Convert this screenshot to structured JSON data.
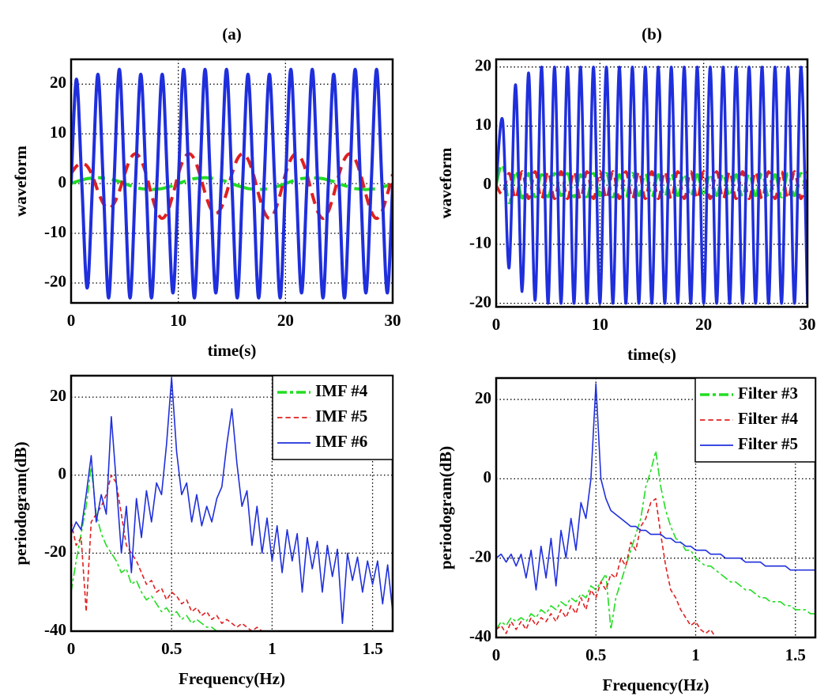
{
  "chart_data": [
    {
      "type": "line",
      "title": "(a)",
      "xlabel": "time(s)",
      "ylabel": "waveform",
      "xlim": [
        0,
        30
      ],
      "ylim": [
        -24,
        25
      ],
      "xticks": [
        0,
        10,
        20,
        30
      ],
      "yticks": [
        -20,
        -10,
        0,
        10,
        20
      ],
      "grid": true,
      "x": [
        0,
        0.5,
        1,
        1.5,
        2,
        2.5,
        3,
        3.5,
        4,
        4.5,
        5,
        5.5,
        6,
        6.5,
        7,
        7.5,
        8,
        8.5,
        9,
        9.5,
        10,
        10.5,
        11,
        11.5,
        12,
        12.5,
        13,
        13.5,
        14,
        14.5,
        15,
        15.5,
        16,
        16.5,
        17,
        17.5,
        18,
        18.5,
        19,
        19.5,
        20,
        20.5,
        21,
        21.5,
        22,
        22.5,
        23,
        23.5,
        24,
        24.5,
        25,
        25.5,
        26,
        26.5,
        27,
        27.5,
        28,
        28.5,
        29,
        29.5,
        30
      ],
      "series": [
        {
          "color": "#22dd22",
          "style": "dashdot",
          "values": [
            0,
            0.4,
            0.7,
            1,
            1.1,
            1.2,
            1.1,
            1,
            0.7,
            0.4,
            0,
            -0.4,
            -0.7,
            -1,
            -1.1,
            -1.2,
            -1.1,
            -1,
            -0.7,
            -0.4,
            0,
            0.4,
            0.7,
            1,
            1.1,
            1.2,
            1.1,
            1,
            0.7,
            0.4,
            0,
            -0.4,
            -0.7,
            -1,
            -1.1,
            -1.2,
            -1.1,
            -1,
            -0.7,
            -0.4,
            0,
            0.4,
            0.7,
            1,
            1.1,
            1.2,
            1.1,
            1,
            0.7,
            0.4,
            0,
            -0.4,
            -0.7,
            -1,
            -1.1,
            -1.2,
            -1.1,
            -1,
            -0.7,
            -0.4,
            0
          ]
        },
        {
          "color": "#e02020",
          "style": "dashed",
          "values": [
            2,
            3.5,
            4,
            3.5,
            1.5,
            -1.5,
            -4,
            -5,
            -4,
            -1.5,
            1.9,
            4.9,
            6,
            4.9,
            1.9,
            -2.2,
            -5.6,
            -7,
            -5.6,
            -2.2,
            1.9,
            4.9,
            6,
            4.9,
            1.9,
            -1.9,
            -4.9,
            -6,
            -4.9,
            -1.9,
            1.9,
            4.9,
            6,
            4.9,
            1.9,
            -2.2,
            -5.6,
            -7,
            -5.6,
            -2.2,
            1.9,
            4.9,
            6,
            4.9,
            1.9,
            -2.2,
            -5.6,
            -7,
            -5.6,
            -2.2,
            1.9,
            4.9,
            6,
            4.9,
            1.9,
            -2.2,
            -5.6,
            -7,
            -5.6,
            -2.2,
            1.9
          ]
        },
        {
          "color": "#1f2fdc",
          "style": "solid",
          "values": [
            0,
            21,
            0,
            -21,
            0,
            22,
            0,
            -23,
            0,
            23,
            0,
            -23,
            0,
            22,
            0,
            -23,
            0,
            22,
            0,
            -22,
            0,
            23,
            0,
            -23,
            0,
            23,
            0,
            -22,
            0,
            23,
            0,
            -23,
            0,
            22,
            0,
            -23,
            0,
            22,
            0,
            -23,
            0,
            23,
            0,
            -22,
            0,
            23,
            0,
            -23,
            0,
            22,
            0,
            -23,
            0,
            23,
            0,
            -22,
            0,
            23,
            0,
            -22,
            0
          ]
        }
      ]
    },
    {
      "type": "line",
      "title": "(b)",
      "xlabel": "time(s)",
      "ylabel": "waveform",
      "xlim": [
        0,
        30
      ],
      "ylim": [
        -20.6,
        21.3
      ],
      "xticks": [
        0,
        10,
        20,
        30
      ],
      "yticks": [
        -20,
        -10,
        0,
        10,
        20
      ],
      "grid": true,
      "x": [
        0,
        0.625,
        1.25,
        1.875,
        2.5,
        3.125,
        3.75,
        4.375,
        5,
        5.625,
        6.25,
        6.875,
        7.5,
        8.125,
        8.75,
        9.375,
        10,
        10.625,
        11.25,
        11.875,
        12.5,
        13.125,
        13.75,
        14.375,
        15,
        15.625,
        16.25,
        16.875,
        17.5,
        18.125,
        18.75,
        19.375,
        20,
        20.625,
        21.25,
        21.875,
        22.5,
        23.125,
        23.75,
        24.375,
        25,
        25.625,
        26.25,
        26.875,
        27.5,
        28.125,
        28.75,
        29.375,
        30
      ],
      "series": [
        {
          "color": "#22dd22",
          "style": "dashdot",
          "values": [
            0,
            3.5,
            -3,
            2.5,
            -2.2,
            2,
            -2,
            1.8,
            -2,
            2,
            -1.8,
            2,
            -2,
            1.8,
            -2,
            2,
            -1.8,
            2,
            -2,
            1.8,
            -2,
            2,
            -1.8,
            2,
            -2,
            1.8,
            -2,
            2,
            -1.8,
            2,
            -2,
            1.8,
            -2,
            2,
            -1.8,
            2,
            -2,
            1.8,
            -2,
            2,
            -1.8,
            2,
            -2,
            1.8,
            -2,
            2,
            -1.8,
            2,
            -2
          ]
        },
        {
          "color": "#e02020",
          "style": "dashed",
          "values": [
            0,
            -1.5,
            2,
            -2.3,
            2.3,
            -2.3,
            2.3,
            -2.3,
            2.3,
            -2.3,
            2.3,
            -2.3,
            2.3,
            -2.3,
            2.3,
            -2.3,
            2.3,
            -2.3,
            2.3,
            -2.3,
            2.3,
            -2.3,
            2.3,
            -2.3,
            2.3,
            -2.3,
            2.3,
            -2.3,
            2.3,
            -2.3,
            2.3,
            -2.3,
            2.3,
            -2.3,
            2.3,
            -2.3,
            2.3,
            -2.3,
            2.3,
            -2.3,
            2.3,
            -2.3,
            2.3,
            -2.3,
            2.3,
            -2.3,
            2.3,
            -2.3,
            2.3
          ]
        },
        {
          "color": "#1f2fdc",
          "style": "solid",
          "values": [
            0,
            11,
            -14,
            17,
            -18,
            19,
            -19.5,
            20,
            -20,
            20,
            -20,
            20,
            -20,
            20,
            -20,
            20,
            -20,
            20,
            -20,
            20,
            -20,
            20,
            -20,
            20,
            -20,
            20,
            -20,
            20,
            -20,
            20,
            -20,
            20,
            -20,
            20,
            -20,
            20,
            -20,
            20,
            -20,
            20,
            -20,
            20,
            -20,
            20,
            -20,
            20,
            -20,
            20,
            -20
          ]
        }
      ]
    },
    {
      "type": "line",
      "xlabel": "Frequency(Hz)",
      "ylabel": "periodogram(dB)",
      "xlim": [
        0,
        1.6
      ],
      "ylim": [
        -40,
        25.5
      ],
      "xticks": [
        0,
        0.5,
        1,
        1.5
      ],
      "yticks": [
        -40,
        -20,
        0,
        20
      ],
      "grid": true,
      "legend": "upper right",
      "x": [
        0,
        0.025,
        0.05,
        0.075,
        0.1,
        0.125,
        0.15,
        0.175,
        0.2,
        0.225,
        0.25,
        0.275,
        0.3,
        0.325,
        0.35,
        0.375,
        0.4,
        0.425,
        0.45,
        0.475,
        0.5,
        0.525,
        0.55,
        0.575,
        0.6,
        0.625,
        0.65,
        0.675,
        0.7,
        0.725,
        0.75,
        0.775,
        0.8,
        0.825,
        0.85,
        0.875,
        0.9,
        0.925,
        0.95,
        0.975,
        1,
        1.025,
        1.05,
        1.075,
        1.1,
        1.125,
        1.15,
        1.175,
        1.2,
        1.225,
        1.25,
        1.275,
        1.3,
        1.325,
        1.35,
        1.375,
        1.4,
        1.425,
        1.45,
        1.475,
        1.5,
        1.525,
        1.55,
        1.575,
        1.6
      ],
      "series": [
        {
          "name": "IMF #4",
          "color": "#22dd22",
          "style": "dashdot",
          "values": [
            -30,
            -22,
            -15,
            -8,
            2,
            -10,
            -15,
            -18,
            -20,
            -22,
            -25,
            -24,
            -28,
            -27,
            -30,
            -32,
            -31,
            -33,
            -35,
            -34,
            -36,
            -35,
            -37,
            -36,
            -38,
            -37,
            -38,
            -39,
            -39,
            -40,
            -40,
            -40,
            -40,
            -40,
            -40,
            -40,
            -40,
            -40,
            -40,
            -40,
            -40,
            -40,
            -40,
            -40,
            -40,
            -40,
            -40,
            -40,
            -40,
            -40,
            -40,
            -40,
            -40,
            -40,
            -40,
            -40,
            -40,
            -40,
            -40,
            -40,
            -40,
            -40,
            -40,
            -40,
            -40
          ]
        },
        {
          "name": "IMF #5",
          "color": "#e02020",
          "style": "dashed",
          "values": [
            -12,
            -18,
            -16,
            -35,
            -12,
            -10,
            -8,
            -5,
            0,
            -2,
            -10,
            -18,
            -20,
            -22,
            -25,
            -28,
            -27,
            -30,
            -29,
            -32,
            -30,
            -31,
            -33,
            -32,
            -35,
            -34,
            -36,
            -35,
            -37,
            -36,
            -38,
            -37,
            -38,
            -39,
            -38,
            -39,
            -40,
            -39,
            -40,
            -40,
            -40,
            -40,
            -40,
            -40,
            -40,
            -40,
            -40,
            -40,
            -40,
            -40,
            -40,
            -40,
            -40,
            -40,
            -40,
            -40,
            -40,
            -40,
            -40,
            -40,
            -40,
            -40,
            -40,
            -40,
            -40
          ]
        },
        {
          "name": "IMF #6",
          "color": "#1f2fdc",
          "style": "solid",
          "values": [
            -15,
            -12,
            -14,
            -5,
            5,
            -12,
            -5,
            -10,
            15,
            -2,
            -20,
            -8,
            -25,
            -6,
            -16,
            -4,
            -12,
            -2,
            -5,
            8,
            25,
            6,
            -5,
            -2,
            -12,
            -5,
            -13,
            -8,
            -12,
            -6,
            -3,
            8,
            17,
            3,
            -8,
            -4,
            -18,
            -8,
            -20,
            -11,
            -22,
            -13,
            -25,
            -14,
            -22,
            -15,
            -30,
            -16,
            -24,
            -17,
            -30,
            -18,
            -26,
            -19,
            -38,
            -20,
            -27,
            -21,
            -30,
            -22,
            -28,
            -22,
            -33,
            -23,
            -35
          ]
        }
      ]
    },
    {
      "type": "line",
      "xlabel": "Frequency(Hz)",
      "ylabel": "periodogram(dB)",
      "xlim": [
        0,
        1.6
      ],
      "ylim": [
        -40,
        25.4
      ],
      "xticks": [
        0,
        0.5,
        1,
        1.5
      ],
      "yticks": [
        -40,
        -20,
        0,
        20
      ],
      "grid": true,
      "legend": "upper right",
      "x": [
        0,
        0.025,
        0.05,
        0.075,
        0.1,
        0.125,
        0.15,
        0.175,
        0.2,
        0.225,
        0.25,
        0.275,
        0.3,
        0.325,
        0.35,
        0.375,
        0.4,
        0.425,
        0.45,
        0.475,
        0.5,
        0.525,
        0.55,
        0.575,
        0.6,
        0.625,
        0.65,
        0.675,
        0.7,
        0.725,
        0.75,
        0.775,
        0.8,
        0.825,
        0.85,
        0.875,
        0.9,
        0.925,
        0.95,
        0.975,
        1,
        1.025,
        1.05,
        1.075,
        1.1,
        1.125,
        1.15,
        1.175,
        1.2,
        1.225,
        1.25,
        1.275,
        1.3,
        1.325,
        1.35,
        1.375,
        1.4,
        1.425,
        1.45,
        1.475,
        1.5,
        1.525,
        1.55,
        1.575,
        1.6
      ],
      "series": [
        {
          "name": "Filter #3",
          "color": "#22dd22",
          "style": "dashdot",
          "values": [
            -38,
            -36,
            -37,
            -35,
            -36,
            -35,
            -36,
            -34,
            -35,
            -33,
            -34,
            -32,
            -33,
            -31,
            -32,
            -30,
            -31,
            -29,
            -30,
            -27,
            -28,
            -26,
            -24,
            -38,
            -30,
            -26,
            -22,
            -18,
            -14,
            -10,
            -2,
            2,
            7,
            -2,
            -8,
            -12,
            -15,
            -16,
            -18,
            -18,
            -20,
            -21,
            -22,
            -22,
            -23,
            -24,
            -25,
            -26,
            -26,
            -27,
            -28,
            -28,
            -29,
            -30,
            -30,
            -31,
            -31,
            -31,
            -32,
            -32,
            -33,
            -33,
            -33,
            -34,
            -34
          ]
        },
        {
          "name": "Filter #4",
          "color": "#e02020",
          "style": "dashed",
          "values": [
            -38,
            -37,
            -39,
            -36,
            -38,
            -36,
            -38,
            -35,
            -37,
            -35,
            -36,
            -34,
            -36,
            -33,
            -35,
            -32,
            -34,
            -30,
            -33,
            -28,
            -30,
            -26,
            -28,
            -24,
            -25,
            -20,
            -22,
            -16,
            -18,
            -12,
            -10,
            -6,
            -5,
            -14,
            -22,
            -28,
            -30,
            -33,
            -35,
            -37,
            -36,
            -38,
            -39,
            -38,
            -40,
            -40,
            -40,
            -40,
            -40,
            -40,
            -40,
            -40,
            -40,
            -40,
            -40,
            -40,
            -40,
            -40,
            -40,
            -40,
            -40,
            -40,
            -40,
            -40,
            -40
          ]
        },
        {
          "name": "Filter #5",
          "color": "#1f2fdc",
          "style": "solid",
          "values": [
            -20,
            -19,
            -21,
            -19,
            -22,
            -19,
            -25,
            -18,
            -28,
            -17,
            -25,
            -15,
            -27,
            -13,
            -20,
            -10,
            -18,
            -6,
            -10,
            0,
            24,
            0,
            -5,
            -8,
            -9,
            -10,
            -11,
            -12,
            -12,
            -13,
            -13,
            -14,
            -14,
            -14,
            -15,
            -15,
            -16,
            -16,
            -17,
            -17,
            -18,
            -18,
            -18,
            -19,
            -19,
            -19,
            -20,
            -20,
            -20,
            -20,
            -21,
            -21,
            -21,
            -21,
            -22,
            -22,
            -22,
            -22,
            -22,
            -23,
            -23,
            -23,
            -23,
            -23,
            -23
          ]
        }
      ]
    }
  ]
}
